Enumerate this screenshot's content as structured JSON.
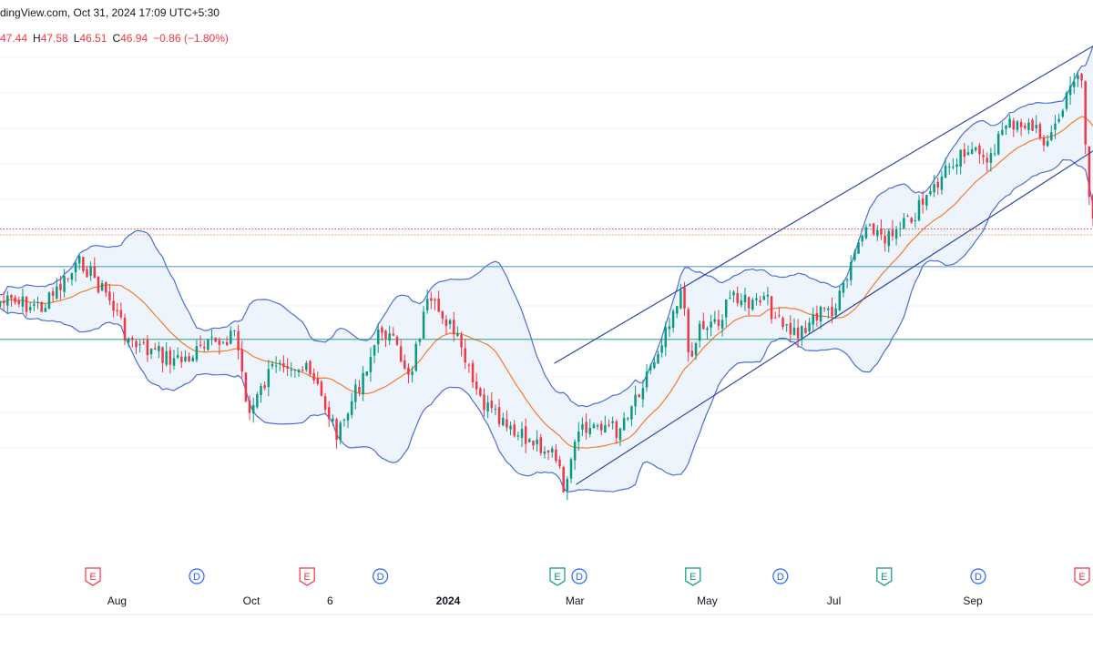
{
  "header": {
    "source": "dingView.com, Oct 31, 2024 17:09 UTC+5:30",
    "ohlc": {
      "open_value": "47.44",
      "high_label": "H",
      "high_value": "47.58",
      "low_label": "L",
      "low_value": "46.51",
      "close_label": "C",
      "close_value": "46.94",
      "change": "−0.86 (−1.80%)"
    }
  },
  "colors": {
    "up": "#089981",
    "down": "#f23645",
    "bollinger_band": "#4c6ed6",
    "bollinger_fill": "#eef4fc",
    "basis_line": "#f57c2a",
    "channel_line": "#3048a6",
    "hline_blue": "#4a8fc0",
    "hline_teal": "#2d9c8a",
    "hline_dotted_red": "#d84848",
    "hline_dotted_orange": "#e0a060",
    "event_e": "#f23645",
    "event_e_green": "#089981",
    "event_d": "#2962ff",
    "axis_text": "#131722",
    "grid": "#f0f3fa"
  },
  "chart_data": {
    "type": "candlestick",
    "x_axis": {
      "ticks": [
        {
          "label": "Aug",
          "bold": false
        },
        {
          "label": "Oct",
          "bold": false
        },
        {
          "label": "6",
          "bold": false
        },
        {
          "label": "2024",
          "bold": true
        },
        {
          "label": "Mar",
          "bold": false
        },
        {
          "label": "May",
          "bold": false
        },
        {
          "label": "Jul",
          "bold": false
        },
        {
          "label": "Sep",
          "bold": false
        }
      ]
    },
    "indicators": [
      "Bollinger Bands (upper, basis, lower)",
      "Parallel ascending channels"
    ],
    "horizontal_lines": [
      {
        "style": "dotted",
        "color": "hline_dotted_red",
        "level": 0.385
      },
      {
        "style": "dotted",
        "color": "hline_dotted_orange",
        "level": 0.396
      },
      {
        "style": "solid",
        "color": "hline_blue",
        "level": 0.455
      },
      {
        "style": "solid",
        "color": "hline_teal",
        "level": 0.59
      }
    ],
    "events": [
      {
        "type": "E",
        "variant": "red",
        "pos": 0.085
      },
      {
        "type": "D",
        "variant": "blue",
        "pos": 0.18
      },
      {
        "type": "E",
        "variant": "red",
        "pos": 0.281
      },
      {
        "type": "D",
        "variant": "blue",
        "pos": 0.348
      },
      {
        "type": "E",
        "variant": "green",
        "pos": 0.51
      },
      {
        "type": "D",
        "variant": "blue",
        "pos": 0.53
      },
      {
        "type": "E",
        "variant": "green",
        "pos": 0.634
      },
      {
        "type": "D",
        "variant": "blue",
        "pos": 0.714
      },
      {
        "type": "E",
        "variant": "green",
        "pos": 0.809
      },
      {
        "type": "D",
        "variant": "blue",
        "pos": 0.895
      },
      {
        "type": "E",
        "variant": "red",
        "pos": 0.99
      }
    ],
    "close_path": [
      [
        0,
        0.52
      ],
      [
        0.04,
        0.53
      ],
      [
        0.075,
        0.445
      ],
      [
        0.1,
        0.515
      ],
      [
        0.12,
        0.6
      ],
      [
        0.165,
        0.63
      ],
      [
        0.2,
        0.595
      ],
      [
        0.215,
        0.575
      ],
      [
        0.228,
        0.73
      ],
      [
        0.255,
        0.62
      ],
      [
        0.28,
        0.65
      ],
      [
        0.29,
        0.68
      ],
      [
        0.31,
        0.77
      ],
      [
        0.325,
        0.69
      ],
      [
        0.35,
        0.565
      ],
      [
        0.36,
        0.6
      ],
      [
        0.375,
        0.655
      ],
      [
        0.39,
        0.53
      ],
      [
        0.405,
        0.54
      ],
      [
        0.42,
        0.6
      ],
      [
        0.435,
        0.69
      ],
      [
        0.45,
        0.73
      ],
      [
        0.47,
        0.77
      ],
      [
        0.49,
        0.78
      ],
      [
        0.505,
        0.8
      ],
      [
        0.518,
        0.875
      ],
      [
        0.528,
        0.77
      ],
      [
        0.55,
        0.745
      ],
      [
        0.565,
        0.76
      ],
      [
        0.58,
        0.7
      ],
      [
        0.6,
        0.62
      ],
      [
        0.61,
        0.56
      ],
      [
        0.623,
        0.5
      ],
      [
        0.632,
        0.63
      ],
      [
        0.64,
        0.565
      ],
      [
        0.66,
        0.55
      ],
      [
        0.672,
        0.5
      ],
      [
        0.687,
        0.53
      ],
      [
        0.7,
        0.515
      ],
      [
        0.715,
        0.57
      ],
      [
        0.73,
        0.58
      ],
      [
        0.745,
        0.545
      ],
      [
        0.765,
        0.53
      ],
      [
        0.775,
        0.48
      ],
      [
        0.785,
        0.41
      ],
      [
        0.8,
        0.385
      ],
      [
        0.815,
        0.405
      ],
      [
        0.83,
        0.375
      ],
      [
        0.84,
        0.35
      ],
      [
        0.855,
        0.31
      ],
      [
        0.87,
        0.26
      ],
      [
        0.885,
        0.23
      ],
      [
        0.9,
        0.265
      ],
      [
        0.915,
        0.21
      ],
      [
        0.93,
        0.18
      ],
      [
        0.945,
        0.2
      ],
      [
        0.96,
        0.22
      ],
      [
        0.975,
        0.15
      ],
      [
        0.985,
        0.085
      ],
      [
        0.99,
        0.11
      ],
      [
        0.995,
        0.3
      ],
      [
        1.0,
        0.37
      ]
    ],
    "channels": [
      {
        "from": [
          0.507,
          0.635
        ],
        "to": [
          1.0,
          0.045
        ]
      },
      {
        "from": [
          0.527,
          0.86
        ],
        "to": [
          1.0,
          0.24
        ]
      }
    ]
  }
}
